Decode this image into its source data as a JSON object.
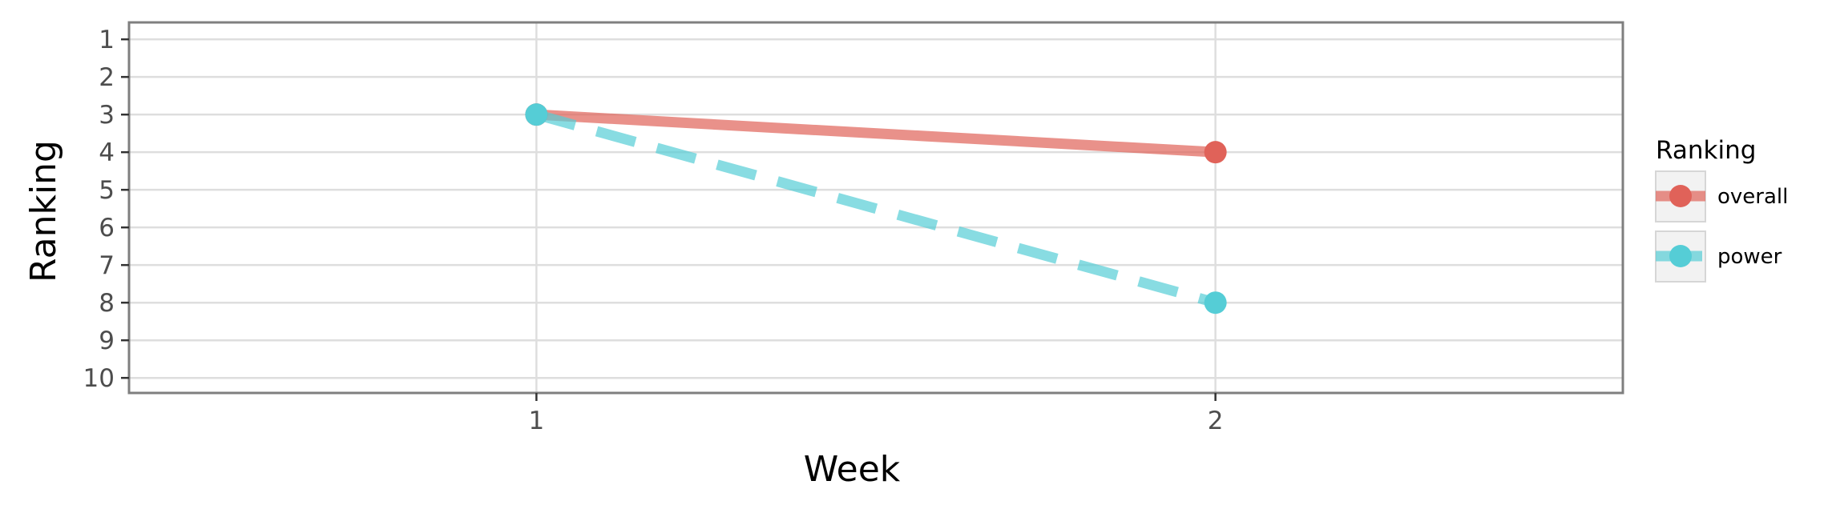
{
  "chart_data": {
    "type": "line",
    "xlabel": "Week",
    "ylabel": "Ranking",
    "x": [
      1,
      2
    ],
    "x_ticks": [
      "1",
      "2"
    ],
    "xlim": [
      0.4,
      2.6
    ],
    "y_ticks": [
      "1",
      "2",
      "3",
      "4",
      "5",
      "6",
      "7",
      "8",
      "9",
      "10"
    ],
    "ylim": [
      10.4,
      0.55
    ],
    "y_reversed": true,
    "grid": true,
    "legend": {
      "title": "Ranking",
      "position": "right"
    },
    "series": [
      {
        "name": "overall",
        "values": [
          3,
          4
        ],
        "color": "#E06259",
        "line_style": "solid"
      },
      {
        "name": "power",
        "values": [
          3,
          8
        ],
        "color": "#55CDD6",
        "line_style": "dashed"
      }
    ]
  }
}
